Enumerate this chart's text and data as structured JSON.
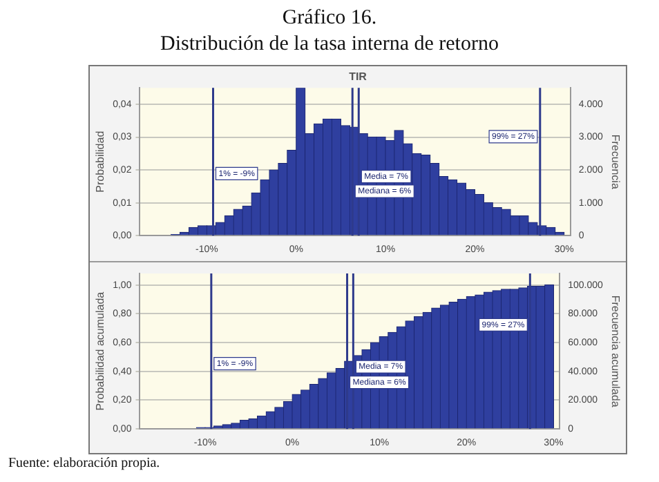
{
  "chart_data": [
    {
      "type": "histogram",
      "title": "Gráfico 16.",
      "subtitle": "Distribución de la tasa interna de retorno",
      "annotations": [
        "TIR"
      ],
      "ylabel": "Probabilidad",
      "y2label": "Frecuencia",
      "bins": [
        -14,
        -13,
        -12,
        -11,
        -10,
        -9,
        -8,
        -7,
        -6,
        -5,
        -4,
        -3,
        -2,
        -1,
        0,
        1,
        2,
        3,
        4,
        5,
        6,
        7,
        8,
        9,
        10,
        11,
        12,
        13,
        14,
        15,
        16,
        17,
        18,
        19,
        20,
        21,
        22,
        23,
        24,
        25,
        26,
        27,
        28,
        29,
        30
      ],
      "values": [
        0.0003,
        0.001,
        0.0025,
        0.003,
        0.003,
        0.004,
        0.006,
        0.008,
        0.009,
        0.013,
        0.017,
        0.02,
        0.022,
        0.026,
        0.045,
        0.031,
        0.034,
        0.0355,
        0.0355,
        0.0335,
        0.033,
        0.031,
        0.03,
        0.03,
        0.029,
        0.032,
        0.028,
        0.025,
        0.0245,
        0.022,
        0.018,
        0.017,
        0.016,
        0.014,
        0.0125,
        0.01,
        0.0085,
        0.008,
        0.006,
        0.006,
        0.004,
        0.003,
        0.0025,
        0.001
      ],
      "color": "#2f3f9f",
      "xlim": [
        -17.5,
        30.7
      ],
      "xticks": [
        {
          "value": -10,
          "label": "-10%"
        },
        {
          "value": 0,
          "label": "0%"
        },
        {
          "value": 10,
          "label": "10%"
        },
        {
          "value": 20,
          "label": "20%"
        },
        {
          "value": 30,
          "label": "30%"
        }
      ],
      "ylim": [
        0,
        0.045
      ],
      "yticks": [
        {
          "value": 0,
          "label": "0,00"
        },
        {
          "value": 0.01,
          "label": "0,01"
        },
        {
          "value": 0.02,
          "label": "0,02"
        },
        {
          "value": 0.03,
          "label": "0,03"
        },
        {
          "value": 0.04,
          "label": "0,04"
        }
      ],
      "y2lim": [
        0,
        4500
      ],
      "y2ticks": [
        0,
        {
          "value": 1000,
          "label": "1.000"
        },
        {
          "value": 2000,
          "label": "2.000"
        },
        {
          "value": 3000,
          "label": "3.000"
        },
        {
          "value": 4000,
          "label": "4.000"
        }
      ],
      "ref_lines": [
        {
          "axis": "x",
          "value": -9.3,
          "label": "1% = -9%",
          "color": "#2e3a8c"
        },
        {
          "axis": "x",
          "value": 7,
          "label": "Media = 7%",
          "color": "#2e3a8c"
        },
        {
          "axis": "x",
          "value": 6.3,
          "label": "Mediana = 6%",
          "color": "#2e3a8c"
        },
        {
          "axis": "x",
          "value": 27.3,
          "label": "99% = 27%",
          "color": "#2e3a8c"
        }
      ],
      "grid": "y",
      "legend": false
    },
    {
      "type": "histogram",
      "ylabel": "Probabilidad acumulada",
      "y2label": "Frecuencia acumulada",
      "annotations": [
        "Fuente: elaboración propia."
      ],
      "bins": [
        -14,
        -13,
        -12,
        -11,
        -10,
        -9,
        -8,
        -7,
        -6,
        -5,
        -4,
        -3,
        -2,
        -1,
        0,
        1,
        2,
        3,
        4,
        5,
        6,
        7,
        8,
        9,
        10,
        11,
        12,
        13,
        14,
        15,
        16,
        17,
        18,
        19,
        20,
        21,
        22,
        23,
        24,
        25,
        26,
        27,
        28,
        29,
        30
      ],
      "values": [
        0,
        0,
        0,
        0.01,
        0.01,
        0.02,
        0.03,
        0.04,
        0.06,
        0.07,
        0.09,
        0.12,
        0.15,
        0.19,
        0.24,
        0.27,
        0.31,
        0.35,
        0.39,
        0.42,
        0.47,
        0.51,
        0.55,
        0.6,
        0.64,
        0.67,
        0.71,
        0.75,
        0.78,
        0.81,
        0.84,
        0.86,
        0.88,
        0.9,
        0.92,
        0.93,
        0.95,
        0.96,
        0.97,
        0.97,
        0.98,
        0.99,
        0.99,
        1
      ],
      "color": "#2f3f9f",
      "xlim": [
        -17.5,
        30.7
      ],
      "xticks": [
        {
          "value": -10,
          "label": "-10%"
        },
        {
          "value": 0,
          "label": "0%"
        },
        {
          "value": 10,
          "label": "10%"
        },
        {
          "value": 20,
          "label": "20%"
        },
        {
          "value": 30,
          "label": "30%"
        }
      ],
      "ylim": [
        0,
        1.08
      ],
      "yticks": [
        {
          "value": 0,
          "label": "0,00"
        },
        {
          "value": 0.2,
          "label": "0,20"
        },
        {
          "value": 0.4,
          "label": "0,40"
        },
        {
          "value": 0.6,
          "label": "0,60"
        },
        {
          "value": 0.8,
          "label": "0,80"
        },
        {
          "value": 1,
          "label": "1,00"
        }
      ],
      "y2lim": [
        0,
        108000
      ],
      "y2ticks": [
        0,
        {
          "value": 20000,
          "label": "20.000"
        },
        {
          "value": 40000,
          "label": "40.000"
        },
        {
          "value": 60000,
          "label": "60.000"
        },
        {
          "value": 80000,
          "label": "80.000"
        },
        {
          "value": 100000,
          "label": "100.000"
        }
      ],
      "ref_lines": [
        {
          "axis": "x",
          "value": -9.3,
          "label": "1% = -9%",
          "color": "#2e3a8c"
        },
        {
          "axis": "x",
          "value": 7,
          "label": "Media = 7%",
          "color": "#2e3a8c"
        },
        {
          "axis": "x",
          "value": 6.3,
          "label": "Mediana = 6%",
          "color": "#2e3a8c"
        },
        {
          "axis": "x",
          "value": 27.3,
          "label": "99% = 27%",
          "color": "#2e3a8c"
        }
      ],
      "grid": "y",
      "legend": false
    }
  ]
}
